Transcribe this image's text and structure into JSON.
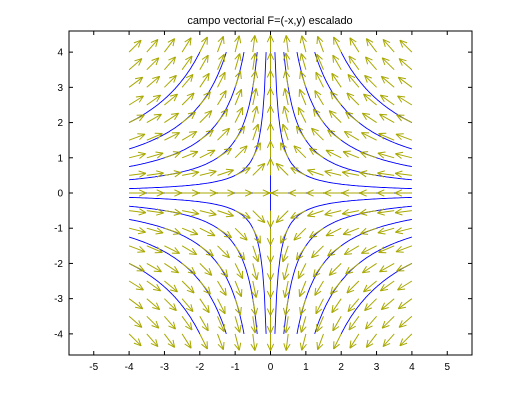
{
  "chart_data": {
    "type": "quiver",
    "title": "campo vectorial F=(-x,y) escalado",
    "xlabel": "",
    "ylabel": "",
    "xlim": [
      -5.7,
      5.7
    ],
    "ylim": [
      -4.6,
      4.6
    ],
    "xticks": [
      -5,
      -4,
      -3,
      -2,
      -1,
      0,
      1,
      2,
      3,
      4,
      5
    ],
    "yticks": [
      -4,
      -3,
      -2,
      -1,
      0,
      1,
      2,
      3,
      4
    ],
    "grid": false,
    "field": {
      "formula": "F = (-x, y) normalized",
      "x_range": [
        -4,
        4
      ],
      "y_range": [
        -4,
        4
      ],
      "step": 0.5,
      "arrow_length": 0.48,
      "color": "#a8a800"
    },
    "streamlines": {
      "color": "#0000ff",
      "relation": "x*y = c",
      "c_values": [
        0.5,
        1.5,
        3,
        5,
        8
      ]
    }
  }
}
